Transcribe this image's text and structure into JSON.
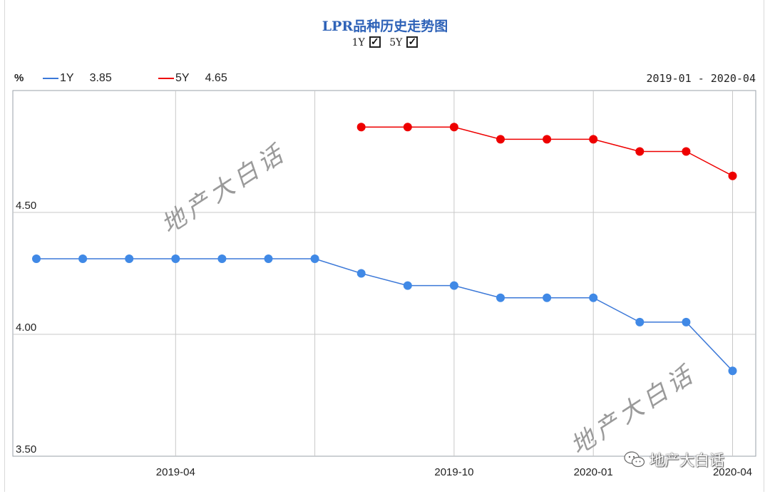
{
  "title": "LPR品种历史走势图",
  "toggles": [
    {
      "label": "1Y",
      "checked": true
    },
    {
      "label": "5Y",
      "checked": true
    }
  ],
  "unit_label": "%",
  "legend": [
    {
      "name": "1Y",
      "value": "3.85",
      "color": "#3b78d8"
    },
    {
      "name": "5Y",
      "value": "4.65",
      "color": "#ee0000"
    }
  ],
  "date_range": "2019-01 - 2020-04",
  "watermark": "地产大白话",
  "badge_text": "地产大白话",
  "chart_data": {
    "type": "line",
    "title": "LPR品种历史走势图",
    "xlabel": "",
    "ylabel": "%",
    "x": [
      "2019-01",
      "2019-02",
      "2019-03",
      "2019-04",
      "2019-05",
      "2019-06",
      "2019-07",
      "2019-08",
      "2019-09",
      "2019-10",
      "2019-11",
      "2019-12",
      "2020-01",
      "2020-02",
      "2020-03",
      "2020-04"
    ],
    "x_ticks": [
      "2019-04",
      "2019-10",
      "2020-01",
      "2020-04"
    ],
    "ylim": [
      3.5,
      5.0
    ],
    "y_ticks": [
      "3.50",
      "4.00",
      "4.50"
    ],
    "grid": true,
    "series": [
      {
        "name": "1Y",
        "color": "#3b78d8",
        "marker_color": "#4089e6",
        "values": [
          4.31,
          4.31,
          4.31,
          4.31,
          4.31,
          4.31,
          4.31,
          4.25,
          4.2,
          4.2,
          4.15,
          4.15,
          4.15,
          4.05,
          4.05,
          3.85
        ]
      },
      {
        "name": "5Y",
        "color": "#ee0000",
        "marker_color": "#ee0000",
        "values": [
          null,
          null,
          null,
          null,
          null,
          null,
          null,
          4.85,
          4.85,
          4.85,
          4.8,
          4.8,
          4.8,
          4.75,
          4.75,
          4.65
        ]
      }
    ]
  }
}
